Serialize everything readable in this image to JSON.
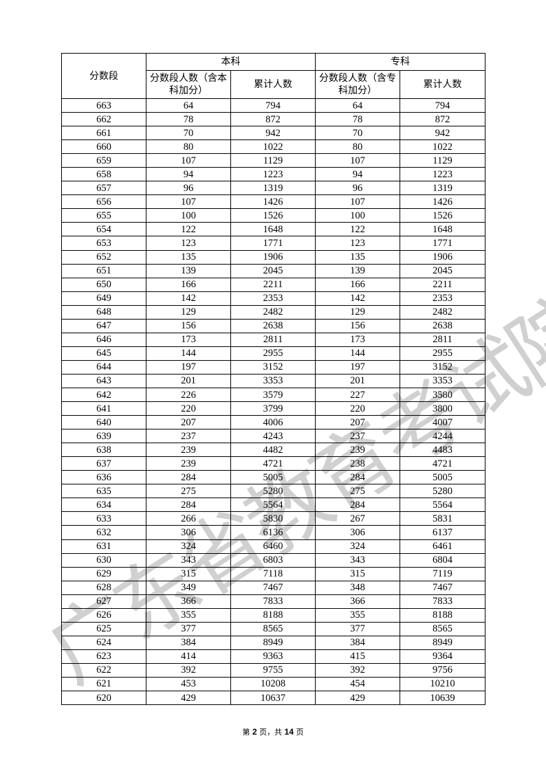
{
  "header": {
    "score_col": "分数段",
    "groups": [
      "本科",
      "专科"
    ],
    "sub": [
      "分数段人数（含本科加分）",
      "累计人数",
      "分数段人数（含专科加分）",
      "累计人数"
    ]
  },
  "rows": [
    [
      "663",
      "64",
      "794",
      "64",
      "794"
    ],
    [
      "662",
      "78",
      "872",
      "78",
      "872"
    ],
    [
      "661",
      "70",
      "942",
      "70",
      "942"
    ],
    [
      "660",
      "80",
      "1022",
      "80",
      "1022"
    ],
    [
      "659",
      "107",
      "1129",
      "107",
      "1129"
    ],
    [
      "658",
      "94",
      "1223",
      "94",
      "1223"
    ],
    [
      "657",
      "96",
      "1319",
      "96",
      "1319"
    ],
    [
      "656",
      "107",
      "1426",
      "107",
      "1426"
    ],
    [
      "655",
      "100",
      "1526",
      "100",
      "1526"
    ],
    [
      "654",
      "122",
      "1648",
      "122",
      "1648"
    ],
    [
      "653",
      "123",
      "1771",
      "123",
      "1771"
    ],
    [
      "652",
      "135",
      "1906",
      "135",
      "1906"
    ],
    [
      "651",
      "139",
      "2045",
      "139",
      "2045"
    ],
    [
      "650",
      "166",
      "2211",
      "166",
      "2211"
    ],
    [
      "649",
      "142",
      "2353",
      "142",
      "2353"
    ],
    [
      "648",
      "129",
      "2482",
      "129",
      "2482"
    ],
    [
      "647",
      "156",
      "2638",
      "156",
      "2638"
    ],
    [
      "646",
      "173",
      "2811",
      "173",
      "2811"
    ],
    [
      "645",
      "144",
      "2955",
      "144",
      "2955"
    ],
    [
      "644",
      "197",
      "3152",
      "197",
      "3152"
    ],
    [
      "643",
      "201",
      "3353",
      "201",
      "3353"
    ],
    [
      "642",
      "226",
      "3579",
      "227",
      "3580"
    ],
    [
      "641",
      "220",
      "3799",
      "220",
      "3800"
    ],
    [
      "640",
      "207",
      "4006",
      "207",
      "4007"
    ],
    [
      "639",
      "237",
      "4243",
      "237",
      "4244"
    ],
    [
      "638",
      "239",
      "4482",
      "239",
      "4483"
    ],
    [
      "637",
      "239",
      "4721",
      "238",
      "4721"
    ],
    [
      "636",
      "284",
      "5005",
      "284",
      "5005"
    ],
    [
      "635",
      "275",
      "5280",
      "275",
      "5280"
    ],
    [
      "634",
      "284",
      "5564",
      "284",
      "5564"
    ],
    [
      "633",
      "266",
      "5830",
      "267",
      "5831"
    ],
    [
      "632",
      "306",
      "6136",
      "306",
      "6137"
    ],
    [
      "631",
      "324",
      "6460",
      "324",
      "6461"
    ],
    [
      "630",
      "343",
      "6803",
      "343",
      "6804"
    ],
    [
      "629",
      "315",
      "7118",
      "315",
      "7119"
    ],
    [
      "628",
      "349",
      "7467",
      "348",
      "7467"
    ],
    [
      "627",
      "366",
      "7833",
      "366",
      "7833"
    ],
    [
      "626",
      "355",
      "8188",
      "355",
      "8188"
    ],
    [
      "625",
      "377",
      "8565",
      "377",
      "8565"
    ],
    [
      "624",
      "384",
      "8949",
      "384",
      "8949"
    ],
    [
      "623",
      "414",
      "9363",
      "415",
      "9364"
    ],
    [
      "622",
      "392",
      "9755",
      "392",
      "9756"
    ],
    [
      "621",
      "453",
      "10208",
      "454",
      "10210"
    ],
    [
      "620",
      "429",
      "10637",
      "429",
      "10639"
    ]
  ],
  "footer": {
    "prefix": "第 ",
    "page": "2",
    "mid": " 页，共 ",
    "total": "14",
    "suffix": " 页"
  },
  "watermark": "广东省教育考试院"
}
